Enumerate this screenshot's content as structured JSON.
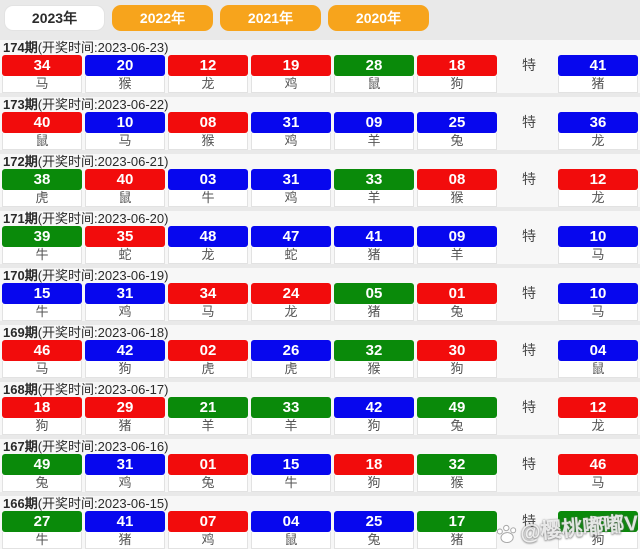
{
  "tabs": [
    {
      "label": "2023年",
      "active": true
    },
    {
      "label": "2022年",
      "active": false
    },
    {
      "label": "2021年",
      "active": false
    },
    {
      "label": "2020年",
      "active": false
    }
  ],
  "special_label": "特",
  "colors": {
    "red": "#f20c0c",
    "blue": "#0707ee",
    "green": "#0a8a0a",
    "tab_orange": "#f7a41c"
  },
  "watermark": {
    "text": "@樱桃嘟嘟V",
    "icon": "paw-icon"
  },
  "draws": [
    {
      "period": "174期",
      "time_label": "(开奖时间:2023-06-23)",
      "balls": [
        {
          "num": "34",
          "color": "red",
          "zodiac": "马"
        },
        {
          "num": "20",
          "color": "blue",
          "zodiac": "猴"
        },
        {
          "num": "12",
          "color": "red",
          "zodiac": "龙"
        },
        {
          "num": "19",
          "color": "red",
          "zodiac": "鸡"
        },
        {
          "num": "28",
          "color": "green",
          "zodiac": "鼠"
        },
        {
          "num": "18",
          "color": "red",
          "zodiac": "狗"
        }
      ],
      "special": {
        "num": "41",
        "color": "blue",
        "zodiac": "猪"
      }
    },
    {
      "period": "173期",
      "time_label": "(开奖时间:2023-06-22)",
      "balls": [
        {
          "num": "40",
          "color": "red",
          "zodiac": "鼠"
        },
        {
          "num": "10",
          "color": "blue",
          "zodiac": "马"
        },
        {
          "num": "08",
          "color": "red",
          "zodiac": "猴"
        },
        {
          "num": "31",
          "color": "blue",
          "zodiac": "鸡"
        },
        {
          "num": "09",
          "color": "blue",
          "zodiac": "羊"
        },
        {
          "num": "25",
          "color": "blue",
          "zodiac": "兔"
        }
      ],
      "special": {
        "num": "36",
        "color": "blue",
        "zodiac": "龙"
      }
    },
    {
      "period": "172期",
      "time_label": "(开奖时间:2023-06-21)",
      "balls": [
        {
          "num": "38",
          "color": "green",
          "zodiac": "虎"
        },
        {
          "num": "40",
          "color": "red",
          "zodiac": "鼠"
        },
        {
          "num": "03",
          "color": "blue",
          "zodiac": "牛"
        },
        {
          "num": "31",
          "color": "blue",
          "zodiac": "鸡"
        },
        {
          "num": "33",
          "color": "green",
          "zodiac": "羊"
        },
        {
          "num": "08",
          "color": "red",
          "zodiac": "猴"
        }
      ],
      "special": {
        "num": "12",
        "color": "red",
        "zodiac": "龙"
      }
    },
    {
      "period": "171期",
      "time_label": "(开奖时间:2023-06-20)",
      "balls": [
        {
          "num": "39",
          "color": "green",
          "zodiac": "牛"
        },
        {
          "num": "35",
          "color": "red",
          "zodiac": "蛇"
        },
        {
          "num": "48",
          "color": "blue",
          "zodiac": "龙"
        },
        {
          "num": "47",
          "color": "blue",
          "zodiac": "蛇"
        },
        {
          "num": "41",
          "color": "blue",
          "zodiac": "猪"
        },
        {
          "num": "09",
          "color": "blue",
          "zodiac": "羊"
        }
      ],
      "special": {
        "num": "10",
        "color": "blue",
        "zodiac": "马"
      }
    },
    {
      "period": "170期",
      "time_label": "(开奖时间:2023-06-19)",
      "balls": [
        {
          "num": "15",
          "color": "blue",
          "zodiac": "牛"
        },
        {
          "num": "31",
          "color": "blue",
          "zodiac": "鸡"
        },
        {
          "num": "34",
          "color": "red",
          "zodiac": "马"
        },
        {
          "num": "24",
          "color": "red",
          "zodiac": "龙"
        },
        {
          "num": "05",
          "color": "green",
          "zodiac": "猪"
        },
        {
          "num": "01",
          "color": "red",
          "zodiac": "兔"
        }
      ],
      "special": {
        "num": "10",
        "color": "blue",
        "zodiac": "马"
      }
    },
    {
      "period": "169期",
      "time_label": "(开奖时间:2023-06-18)",
      "balls": [
        {
          "num": "46",
          "color": "red",
          "zodiac": "马"
        },
        {
          "num": "42",
          "color": "blue",
          "zodiac": "狗"
        },
        {
          "num": "02",
          "color": "red",
          "zodiac": "虎"
        },
        {
          "num": "26",
          "color": "blue",
          "zodiac": "虎"
        },
        {
          "num": "32",
          "color": "green",
          "zodiac": "猴"
        },
        {
          "num": "30",
          "color": "red",
          "zodiac": "狗"
        }
      ],
      "special": {
        "num": "04",
        "color": "blue",
        "zodiac": "鼠"
      }
    },
    {
      "period": "168期",
      "time_label": "(开奖时间:2023-06-17)",
      "balls": [
        {
          "num": "18",
          "color": "red",
          "zodiac": "狗"
        },
        {
          "num": "29",
          "color": "red",
          "zodiac": "猪"
        },
        {
          "num": "21",
          "color": "green",
          "zodiac": "羊"
        },
        {
          "num": "33",
          "color": "green",
          "zodiac": "羊"
        },
        {
          "num": "42",
          "color": "blue",
          "zodiac": "狗"
        },
        {
          "num": "49",
          "color": "green",
          "zodiac": "兔"
        }
      ],
      "special": {
        "num": "12",
        "color": "red",
        "zodiac": "龙"
      }
    },
    {
      "period": "167期",
      "time_label": "(开奖时间:2023-06-16)",
      "balls": [
        {
          "num": "49",
          "color": "green",
          "zodiac": "兔"
        },
        {
          "num": "31",
          "color": "blue",
          "zodiac": "鸡"
        },
        {
          "num": "01",
          "color": "red",
          "zodiac": "兔"
        },
        {
          "num": "15",
          "color": "blue",
          "zodiac": "牛"
        },
        {
          "num": "18",
          "color": "red",
          "zodiac": "狗"
        },
        {
          "num": "32",
          "color": "green",
          "zodiac": "猴"
        }
      ],
      "special": {
        "num": "46",
        "color": "red",
        "zodiac": "马"
      }
    },
    {
      "period": "166期",
      "time_label": "(开奖时间:2023-06-15)",
      "balls": [
        {
          "num": "27",
          "color": "green",
          "zodiac": "牛"
        },
        {
          "num": "41",
          "color": "blue",
          "zodiac": "猪"
        },
        {
          "num": "07",
          "color": "red",
          "zodiac": "鸡"
        },
        {
          "num": "04",
          "color": "blue",
          "zodiac": "鼠"
        },
        {
          "num": "25",
          "color": "blue",
          "zodiac": "兔"
        },
        {
          "num": "17",
          "color": "green",
          "zodiac": "猪"
        }
      ],
      "special": {
        "num": "06",
        "color": "green",
        "zodiac": "狗"
      }
    }
  ]
}
